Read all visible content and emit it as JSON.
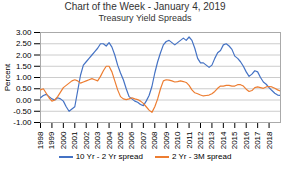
{
  "chart_data": {
    "type": "line",
    "title": "Chart of the Week - January 4, 2019",
    "subtitle": "Treasury Yield Spreads",
    "ylabel": "Percent",
    "x": [
      1998.0,
      1998.25,
      1998.5,
      1998.75,
      1999.0,
      1999.25,
      1999.5,
      1999.75,
      2000.0,
      2000.25,
      2000.5,
      2000.75,
      2001.0,
      2001.25,
      2001.5,
      2001.75,
      2002.0,
      2002.25,
      2002.5,
      2002.75,
      2003.0,
      2003.25,
      2003.5,
      2003.75,
      2004.0,
      2004.25,
      2004.5,
      2004.75,
      2005.0,
      2005.25,
      2005.5,
      2005.75,
      2006.0,
      2006.25,
      2006.5,
      2006.75,
      2007.0,
      2007.25,
      2007.5,
      2007.75,
      2008.0,
      2008.25,
      2008.5,
      2008.75,
      2009.0,
      2009.25,
      2009.5,
      2009.75,
      2010.0,
      2010.25,
      2010.5,
      2010.75,
      2011.0,
      2011.25,
      2011.5,
      2011.75,
      2012.0,
      2012.25,
      2012.5,
      2012.75,
      2013.0,
      2013.25,
      2013.5,
      2013.75,
      2014.0,
      2014.25,
      2014.5,
      2014.75,
      2015.0,
      2015.25,
      2015.5,
      2015.75,
      2016.0,
      2016.25,
      2016.5,
      2016.75,
      2017.0,
      2017.25,
      2017.5,
      2017.75,
      2018.0,
      2018.25,
      2018.5,
      2018.75,
      2019.0
    ],
    "series": [
      {
        "name": "10 Yr - 2 Yr spread",
        "color": "#4472C4",
        "values": [
          0.1,
          0.2,
          0.25,
          0.15,
          0.05,
          0.0,
          0.1,
          0.05,
          -0.05,
          -0.3,
          -0.5,
          -0.4,
          -0.3,
          0.4,
          1.1,
          1.55,
          1.7,
          1.85,
          2.0,
          2.15,
          2.3,
          2.5,
          2.5,
          2.4,
          2.55,
          2.35,
          2.0,
          1.55,
          1.2,
          0.9,
          0.5,
          0.15,
          0.05,
          -0.05,
          -0.1,
          -0.2,
          -0.25,
          -0.05,
          0.2,
          0.6,
          1.2,
          1.7,
          2.1,
          2.45,
          2.6,
          2.65,
          2.55,
          2.45,
          2.55,
          2.65,
          2.75,
          2.65,
          2.8,
          2.65,
          2.3,
          1.85,
          1.65,
          1.65,
          1.55,
          1.45,
          1.55,
          1.85,
          2.1,
          2.2,
          2.45,
          2.5,
          2.4,
          2.25,
          1.95,
          1.85,
          1.7,
          1.5,
          1.25,
          1.05,
          1.15,
          1.3,
          1.25,
          1.0,
          0.8,
          0.7,
          0.55,
          0.42,
          0.3,
          0.22,
          0.2
        ]
      },
      {
        "name": "2 Yr - 3M spread",
        "color": "#ED7D31",
        "values": [
          0.45,
          0.5,
          0.3,
          0.1,
          -0.05,
          0.0,
          0.15,
          0.35,
          0.55,
          0.65,
          0.75,
          0.85,
          0.9,
          0.85,
          0.75,
          0.8,
          0.85,
          0.9,
          0.95,
          0.9,
          0.85,
          1.05,
          1.3,
          1.5,
          1.5,
          1.25,
          0.85,
          0.45,
          0.15,
          0.05,
          0.02,
          0.05,
          0.1,
          0.05,
          0.02,
          -0.05,
          -0.15,
          -0.3,
          -0.45,
          -0.55,
          -0.3,
          0.05,
          0.5,
          0.85,
          0.9,
          0.88,
          0.85,
          0.8,
          0.82,
          0.85,
          0.82,
          0.78,
          0.65,
          0.45,
          0.32,
          0.28,
          0.22,
          0.18,
          0.2,
          0.22,
          0.28,
          0.38,
          0.52,
          0.62,
          0.62,
          0.65,
          0.65,
          0.62,
          0.62,
          0.68,
          0.68,
          0.62,
          0.48,
          0.38,
          0.42,
          0.55,
          0.58,
          0.55,
          0.52,
          0.58,
          0.6,
          0.58,
          0.52,
          0.45,
          0.4
        ]
      }
    ],
    "xlim": [
      1998,
      2019
    ],
    "xticks": [
      1998,
      1999,
      2000,
      2001,
      2002,
      2003,
      2004,
      2005,
      2006,
      2007,
      2008,
      2009,
      2010,
      2011,
      2012,
      2013,
      2014,
      2015,
      2016,
      2017,
      2018
    ],
    "ylim": [
      -1.0,
      3.0
    ],
    "yticks": [
      {
        "value": -1.0,
        "label": "-1.00"
      },
      {
        "value": -0.5,
        "label": "-0.50"
      },
      {
        "value": 0.0,
        "label": "0.00"
      },
      {
        "value": 0.5,
        "label": "0.50"
      },
      {
        "value": 1.0,
        "label": "1.00"
      },
      {
        "value": 1.5,
        "label": "1.50"
      },
      {
        "value": 2.0,
        "label": "2.00"
      },
      {
        "value": 2.5,
        "label": "2.50"
      },
      {
        "value": 3.0,
        "label": "3.00"
      }
    ],
    "grid": "y",
    "legend": "bottom"
  }
}
